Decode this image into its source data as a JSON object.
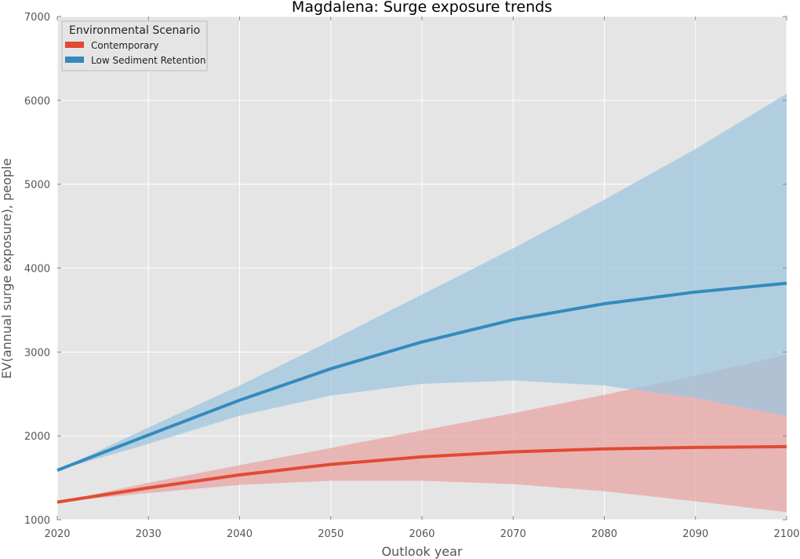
{
  "chart_data": {
    "type": "area",
    "title": "Magdalena: Surge exposure trends",
    "xlabel": "Outlook year",
    "ylabel": "EV(annual surge exposure), people",
    "xlim": [
      2020,
      2100
    ],
    "ylim": [
      1000,
      7000
    ],
    "x_ticks": [
      2020,
      2030,
      2040,
      2050,
      2060,
      2070,
      2080,
      2090,
      2100
    ],
    "y_ticks": [
      1000,
      2000,
      3000,
      4000,
      5000,
      6000,
      7000
    ],
    "grid": true,
    "legend": {
      "title": "Environmental Scenario",
      "placement": "top-left"
    },
    "x": [
      2020,
      2030,
      2040,
      2050,
      2060,
      2070,
      2080,
      2090,
      2100
    ],
    "series": [
      {
        "name": "Contemporary",
        "color": "#e24a33",
        "band_color": "#e8a4a4",
        "values": [
          1210,
          1380,
          1535,
          1660,
          1750,
          1810,
          1845,
          1862,
          1872
        ],
        "lower": [
          1210,
          1320,
          1415,
          1465,
          1465,
          1425,
          1340,
          1220,
          1090
        ],
        "upper": [
          1210,
          1440,
          1650,
          1855,
          2065,
          2270,
          2490,
          2720,
          2970
        ]
      },
      {
        "name": "Low Sediment Retention",
        "color": "#348abd",
        "band_color": "#9fc5df",
        "values": [
          1590,
          2010,
          2425,
          2800,
          3120,
          3385,
          3575,
          3715,
          3820
        ],
        "lower": [
          1590,
          1905,
          2240,
          2480,
          2620,
          2660,
          2600,
          2450,
          2235
        ],
        "upper": [
          1590,
          2100,
          2600,
          3135,
          3685,
          4235,
          4815,
          5420,
          6080
        ]
      }
    ]
  }
}
